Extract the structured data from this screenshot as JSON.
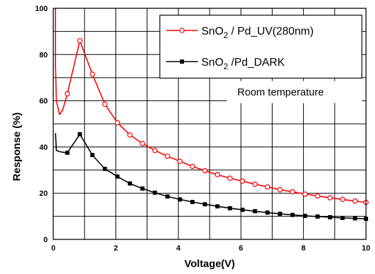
{
  "chart_data": {
    "type": "line",
    "title": "",
    "xlabel": "Voltage(V)",
    "ylabel": "Response (%)",
    "xlim": [
      0,
      10
    ],
    "ylim": [
      0,
      100
    ],
    "x_ticks": [
      "0",
      "2",
      "4",
      "6",
      "8",
      "10"
    ],
    "y_ticks": [
      "0",
      "20",
      "40",
      "60",
      "80",
      "100"
    ],
    "grid": true,
    "legend_position": "top-right",
    "annotation": "Room temperature",
    "series": [
      {
        "name_main": "SnO",
        "name_sub": "2",
        "name_rest": " / Pd_UV(280nm)",
        "color": "#ff0000",
        "marker": "open-circle",
        "lead_in": [
          [
            0.07,
            100
          ],
          [
            0.07,
            75
          ],
          [
            0.1,
            60
          ],
          [
            0.2,
            54
          ],
          [
            0.3,
            56
          ],
          [
            0.45,
            63
          ]
        ],
        "x": [
          0.45,
          0.85,
          1.25,
          1.65,
          2.05,
          2.45,
          2.85,
          3.25,
          3.65,
          4.05,
          4.45,
          4.85,
          5.25,
          5.65,
          6.05,
          6.45,
          6.85,
          7.25,
          7.65,
          8.05,
          8.45,
          8.85,
          9.25,
          9.65,
          10.0
        ],
        "y": [
          63,
          86,
          71.5,
          58.5,
          50.5,
          45.2,
          41.5,
          38.5,
          36,
          33.8,
          31.6,
          29.7,
          28,
          26.5,
          25.2,
          23.9,
          22.7,
          21.5,
          20.6,
          19.6,
          18.8,
          18,
          17.3,
          16.6,
          16
        ]
      },
      {
        "name_main": "SnO",
        "name_sub": "2",
        "name_rest": " /Pd_DARK",
        "color": "#000000",
        "marker": "filled-square",
        "lead_in": [
          [
            0.07,
            46
          ],
          [
            0.1,
            38.5
          ],
          [
            0.2,
            38
          ],
          [
            0.4,
            37.5
          ]
        ],
        "x": [
          0.45,
          0.85,
          1.25,
          1.65,
          2.05,
          2.45,
          2.85,
          3.25,
          3.65,
          4.05,
          4.45,
          4.85,
          5.25,
          5.65,
          6.05,
          6.45,
          6.85,
          7.25,
          7.65,
          8.05,
          8.45,
          8.85,
          9.25,
          9.65,
          10.0
        ],
        "y": [
          37.5,
          45.5,
          36.5,
          30.5,
          27.2,
          24.2,
          22,
          20.2,
          18.6,
          17.3,
          16.2,
          15.2,
          14.3,
          13.5,
          12.8,
          12.2,
          11.6,
          11.1,
          10.6,
          10.2,
          9.9,
          9.6,
          9.3,
          9.1,
          8.9
        ]
      }
    ]
  }
}
